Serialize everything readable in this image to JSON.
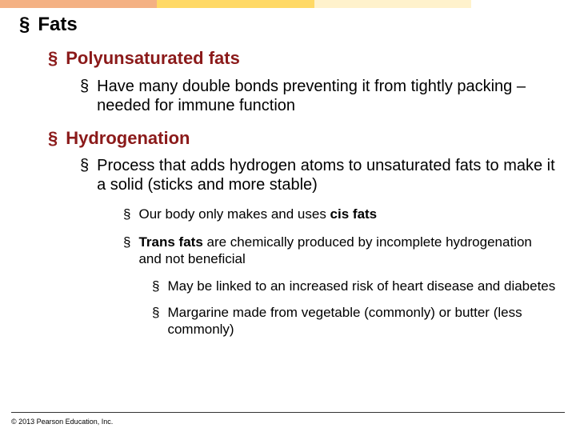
{
  "colors": {
    "topbar": [
      "#f4b183",
      "#ffd966",
      "#fff2cc",
      "#ffffff"
    ],
    "heading_accent": "#8b1a1a",
    "text": "#000000",
    "background": "#ffffff",
    "rule": "#333333"
  },
  "typography": {
    "family": "Arial",
    "lvl0_size_pt": 18,
    "lvl0_weight": "bold",
    "lvl1_size_pt": 16,
    "lvl1_weight": "bold",
    "lvl2_size_pt": 15,
    "lvl3_size_pt": 13,
    "lvl4_size_pt": 13,
    "footer_size_pt": 7
  },
  "bullet_glyph": "§",
  "slide": {
    "lvl0_title": "Fats",
    "sec1": {
      "heading": "Polyunsaturated fats",
      "point": "Have many double bonds preventing it from tightly packing – needed for immune function"
    },
    "sec2": {
      "heading": "Hydrogenation",
      "point": "Process that adds hydrogen atoms to unsaturated fats to make it a solid (sticks and more stable)",
      "sub1_pre": "Our body only makes and uses ",
      "sub1_bold": "cis fats",
      "sub2_bold": "Trans fats",
      "sub2_rest": " are chemically produced by incomplete hydrogenation and not beneficial",
      "sub2a": "May be linked to an increased risk of heart disease and diabetes",
      "sub2b": "Margarine made from vegetable (commonly) or butter (less commonly)"
    }
  },
  "footer": "© 2013 Pearson Education, Inc."
}
